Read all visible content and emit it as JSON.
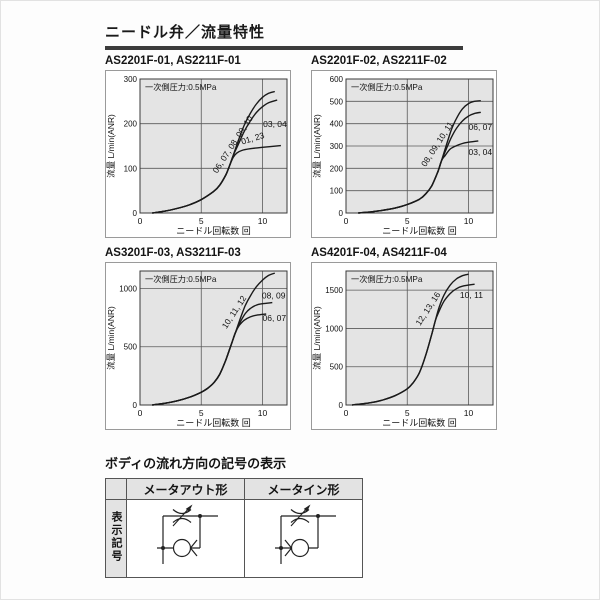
{
  "page": {
    "title": "ニードル弁／流量特性"
  },
  "chart_data": [
    {
      "type": "line",
      "title": "AS2201F-01, AS2211F-01",
      "legend": "一次側圧力:0.5MPa",
      "xlabel": "ニードル回転数 回",
      "ylabel": "流量 L/min(ANR)",
      "xlim": [
        0,
        12
      ],
      "ylim": [
        0,
        300
      ],
      "xticks": [
        0,
        5,
        10
      ],
      "yticks": [
        0,
        100,
        200,
        300
      ],
      "grid": true,
      "series": [
        {
          "name": "06, 07, 08, 09, 10",
          "label_x": 6.3,
          "label_y": 88,
          "label_rot": -57,
          "points": [
            [
              1,
              0
            ],
            [
              2,
              4
            ],
            [
              3,
              10
            ],
            [
              4,
              18
            ],
            [
              5,
              30
            ],
            [
              6,
              48
            ],
            [
              6.5,
              62
            ],
            [
              7,
              85
            ],
            [
              7.3,
              105
            ],
            [
              7.6,
              128
            ],
            [
              8,
              160
            ],
            [
              8.5,
              196
            ],
            [
              9,
              223
            ],
            [
              9.5,
              244
            ],
            [
              10,
              259
            ],
            [
              10.5,
              268
            ],
            [
              11,
              272
            ]
          ]
        },
        {
          "name": "03, 04",
          "label_x": 10.05,
          "label_y": 193,
          "label_rot": 0,
          "points": [
            [
              1,
              0
            ],
            [
              2,
              4
            ],
            [
              3,
              10
            ],
            [
              4,
              18
            ],
            [
              5,
              30
            ],
            [
              6,
              48
            ],
            [
              6.5,
              62
            ],
            [
              7,
              85
            ],
            [
              7.3,
              105
            ],
            [
              7.6,
              128
            ],
            [
              8,
              152
            ],
            [
              8.5,
              182
            ],
            [
              9,
              206
            ],
            [
              9.5,
              225
            ],
            [
              10,
              238
            ],
            [
              10.5,
              247
            ],
            [
              11.2,
              253
            ]
          ]
        },
        {
          "name": "01, 23",
          "label_x": 8.35,
          "label_y": 153,
          "label_rot": -17,
          "points": [
            [
              1,
              0
            ],
            [
              2,
              4
            ],
            [
              3,
              10
            ],
            [
              4,
              18
            ],
            [
              5,
              30
            ],
            [
              6,
              48
            ],
            [
              6.5,
              62
            ],
            [
              7,
              85
            ],
            [
              7.3,
              105
            ],
            [
              7.6,
              124
            ],
            [
              7.9,
              134
            ],
            [
              8.3,
              140
            ],
            [
              9,
              144
            ],
            [
              10,
              147
            ],
            [
              11.5,
              151
            ]
          ]
        }
      ]
    },
    {
      "type": "line",
      "title": "AS2201F-02, AS2211F-02",
      "legend": "一次側圧力:0.5MPa",
      "xlabel": "ニードル回転数 回",
      "ylabel": "流量 L/min(ANR)",
      "xlim": [
        0,
        12
      ],
      "ylim": [
        0,
        600
      ],
      "xticks": [
        0,
        5,
        10
      ],
      "yticks": [
        0,
        100,
        200,
        300,
        400,
        500,
        600
      ],
      "grid": true,
      "series": [
        {
          "name": "08, 09, 10, 11",
          "label_x": 6.5,
          "label_y": 205,
          "label_rot": -57,
          "points": [
            [
              1,
              0
            ],
            [
              2,
              5
            ],
            [
              3,
              12
            ],
            [
              4,
              22
            ],
            [
              5,
              38
            ],
            [
              6,
              62
            ],
            [
              6.5,
              85
            ],
            [
              7,
              122
            ],
            [
              7.5,
              185
            ],
            [
              7.8,
              235
            ],
            [
              8.2,
              305
            ],
            [
              8.6,
              372
            ],
            [
              9,
              422
            ],
            [
              9.5,
              466
            ],
            [
              10,
              490
            ],
            [
              10.5,
              500
            ],
            [
              11,
              503
            ]
          ]
        },
        {
          "name": "06, 07",
          "label_x": 10.0,
          "label_y": 372,
          "label_rot": 0,
          "points": [
            [
              1,
              0
            ],
            [
              2,
              5
            ],
            [
              3,
              12
            ],
            [
              4,
              22
            ],
            [
              5,
              38
            ],
            [
              6,
              62
            ],
            [
              6.5,
              85
            ],
            [
              7,
              122
            ],
            [
              7.5,
              185
            ],
            [
              7.8,
              235
            ],
            [
              8.2,
              288
            ],
            [
              8.6,
              338
            ],
            [
              9,
              378
            ],
            [
              9.5,
              412
            ],
            [
              10,
              434
            ],
            [
              10.5,
              446
            ],
            [
              11,
              451
            ]
          ]
        },
        {
          "name": "03, 04",
          "label_x": 10.0,
          "label_y": 260,
          "label_rot": 0,
          "points": [
            [
              1,
              0
            ],
            [
              2,
              5
            ],
            [
              3,
              12
            ],
            [
              4,
              22
            ],
            [
              5,
              38
            ],
            [
              6,
              62
            ],
            [
              6.5,
              85
            ],
            [
              7,
              122
            ],
            [
              7.5,
              185
            ],
            [
              7.8,
              235
            ],
            [
              8.1,
              258
            ],
            [
              8.5,
              286
            ],
            [
              9,
              301
            ],
            [
              9.5,
              311
            ],
            [
              10,
              317
            ],
            [
              10.8,
              323
            ]
          ]
        }
      ]
    },
    {
      "type": "line",
      "title": "AS3201F-03, AS3211F-03",
      "legend": "一次側圧力:0.5MPa",
      "xlabel": "ニードル回転数 回",
      "ylabel": "流量 L/min(ANR)",
      "xlim": [
        0,
        12
      ],
      "ylim": [
        0,
        1150
      ],
      "xticks": [
        0,
        5,
        10
      ],
      "yticks": [
        0,
        500,
        1000
      ],
      "grid": true,
      "series": [
        {
          "name": "10, 11, 12",
          "label_x": 7.05,
          "label_y": 650,
          "label_rot": -57,
          "points": [
            [
              1,
              0
            ],
            [
              2,
              15
            ],
            [
              3,
              35
            ],
            [
              4,
              65
            ],
            [
              5,
              110
            ],
            [
              5.5,
              142
            ],
            [
              6,
              188
            ],
            [
              6.5,
              262
            ],
            [
              7,
              385
            ],
            [
              7.5,
              535
            ],
            [
              7.8,
              625
            ],
            [
              8.2,
              745
            ],
            [
              8.6,
              855
            ],
            [
              9,
              935
            ],
            [
              9.5,
              1015
            ],
            [
              10,
              1072
            ],
            [
              10.5,
              1112
            ],
            [
              11,
              1132
            ]
          ]
        },
        {
          "name": "08, 09",
          "label_x": 9.95,
          "label_y": 912,
          "label_rot": 0,
          "points": [
            [
              1,
              0
            ],
            [
              2,
              15
            ],
            [
              3,
              35
            ],
            [
              4,
              65
            ],
            [
              5,
              110
            ],
            [
              5.5,
              142
            ],
            [
              6,
              188
            ],
            [
              6.5,
              262
            ],
            [
              7,
              385
            ],
            [
              7.5,
              535
            ],
            [
              7.8,
              625
            ],
            [
              8.2,
              715
            ],
            [
              8.6,
              785
            ],
            [
              9,
              828
            ],
            [
              9.5,
              857
            ],
            [
              10,
              869
            ],
            [
              10.8,
              879
            ]
          ]
        },
        {
          "name": "06, 07",
          "label_x": 10.0,
          "label_y": 722,
          "label_rot": 0,
          "points": [
            [
              1,
              0
            ],
            [
              2,
              15
            ],
            [
              3,
              35
            ],
            [
              4,
              65
            ],
            [
              5,
              110
            ],
            [
              5.5,
              142
            ],
            [
              6,
              188
            ],
            [
              6.5,
              262
            ],
            [
              7,
              385
            ],
            [
              7.5,
              535
            ],
            [
              7.8,
              625
            ],
            [
              8.1,
              682
            ],
            [
              8.5,
              727
            ],
            [
              9,
              756
            ],
            [
              9.5,
              771
            ],
            [
              10.3,
              781
            ]
          ]
        }
      ]
    },
    {
      "type": "line",
      "title": "AS4201F-04, AS4211F-04",
      "legend": "一次側圧力:0.5MPa",
      "xlabel": "ニードル回転数 回",
      "ylabel": "流量 L/min(ANR)",
      "xlim": [
        0,
        12
      ],
      "ylim": [
        0,
        1750
      ],
      "xticks": [
        0,
        5,
        10
      ],
      "yticks": [
        0,
        500,
        1000,
        1500
      ],
      "grid": true,
      "series": [
        {
          "name": "12, 13, 16",
          "label_x": 6.05,
          "label_y": 1030,
          "label_rot": -57,
          "points": [
            [
              0.5,
              0
            ],
            [
              2,
              30
            ],
            [
              3,
              65
            ],
            [
              4,
              122
            ],
            [
              5,
              212
            ],
            [
              5.5,
              295
            ],
            [
              6,
              425
            ],
            [
              6.5,
              645
            ],
            [
              7,
              925
            ],
            [
              7.3,
              1105
            ],
            [
              7.6,
              1275
            ],
            [
              8,
              1435
            ],
            [
              8.5,
              1565
            ],
            [
              9,
              1645
            ],
            [
              9.5,
              1688
            ],
            [
              10,
              1708
            ]
          ]
        },
        {
          "name": "10, 11",
          "label_x": 9.3,
          "label_y": 1395,
          "label_rot": 0,
          "points": [
            [
              0.5,
              0
            ],
            [
              2,
              30
            ],
            [
              3,
              65
            ],
            [
              4,
              122
            ],
            [
              5,
              212
            ],
            [
              5.5,
              295
            ],
            [
              6,
              425
            ],
            [
              6.5,
              645
            ],
            [
              7,
              925
            ],
            [
              7.3,
              1105
            ],
            [
              7.6,
              1225
            ],
            [
              8,
              1355
            ],
            [
              8.5,
              1455
            ],
            [
              9,
              1518
            ],
            [
              9.5,
              1552
            ],
            [
              10.5,
              1578
            ]
          ]
        }
      ]
    }
  ],
  "flow_symbols": {
    "heading": "ボディの流れ方向の記号の表示",
    "row_header": "表示記号",
    "columns": [
      {
        "label": "メータアウト形",
        "direction": "meter-out"
      },
      {
        "label": "メータイン形",
        "direction": "meter-in"
      }
    ]
  },
  "colors": {
    "plot_bg": "#e4e4e4",
    "grid_line": "#5a5a5a",
    "curve": "#1a1a1a",
    "panel_border": "#9a9a9a",
    "title_rule": "#3c3c3c",
    "table_header_bg": "#e3e3e3",
    "symbol_stroke": "#222222"
  }
}
